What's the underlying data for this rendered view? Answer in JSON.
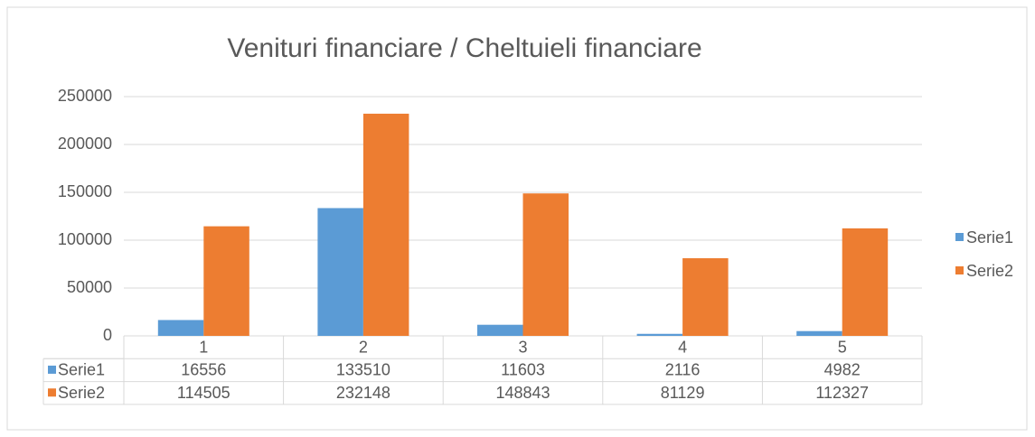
{
  "chart_data": {
    "type": "bar",
    "title": "Venituri financiare / Cheltuieli financiare",
    "categories": [
      "1",
      "2",
      "3",
      "4",
      "5"
    ],
    "series": [
      {
        "name": "Serie1",
        "color": "#5b9bd5",
        "values": [
          16556,
          133510,
          11603,
          2116,
          4982
        ]
      },
      {
        "name": "Serie2",
        "color": "#ed7d31",
        "values": [
          114505,
          232148,
          148843,
          81129,
          112327
        ]
      }
    ],
    "ylim": [
      0,
      250000
    ],
    "yticks": [
      0,
      50000,
      100000,
      150000,
      200000,
      250000
    ],
    "grid": true,
    "legend": "right",
    "data_table": true
  }
}
